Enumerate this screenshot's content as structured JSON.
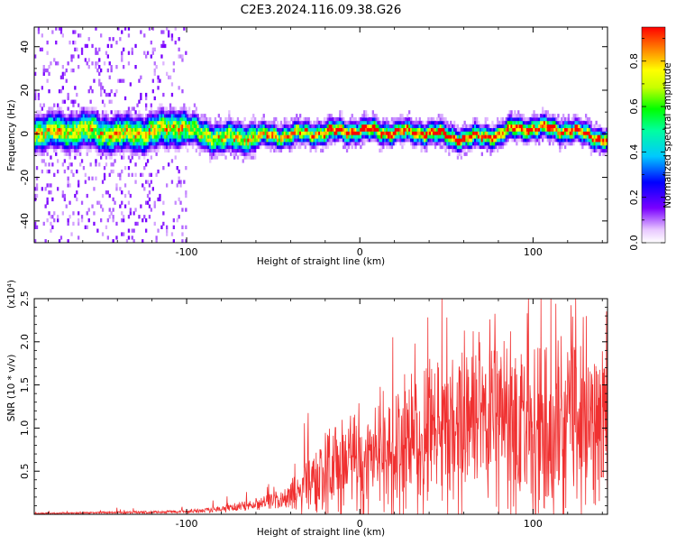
{
  "title": "C2E3.2024.116.09.38.G26",
  "colors": {
    "snr_line": "#f03030",
    "background": "#ffffff",
    "axis": "#000000"
  },
  "chart_data": [
    {
      "type": "heatmap",
      "xlabel": "Height of straight line (km)",
      "ylabel": "Frequency (Hz)",
      "xlim": [
        -188,
        143
      ],
      "ylim": [
        -50,
        49
      ],
      "x_ticks": [
        -100,
        0,
        100
      ],
      "y_ticks": [
        -40,
        -20,
        0,
        20,
        40
      ],
      "colorbar": {
        "label": "Normalized spectral amplitude",
        "range": [
          0.0,
          0.95
        ],
        "ticks": [
          0.0,
          0.2,
          0.4,
          0.6,
          0.8
        ],
        "tick_labels": [
          "0.0",
          "0.2",
          "0.4",
          "0.6",
          "0.8"
        ],
        "colormap": "rainbow (white/purple low → red high)"
      },
      "ridge": {
        "description": "central frequency of the signal vs height",
        "x": [
          -180,
          -160,
          -140,
          -120,
          -105,
          -95,
          -80,
          -60,
          -40,
          -20,
          0,
          20,
          40,
          60,
          80,
          90,
          100,
          120,
          140
        ],
        "center_hz": [
          0,
          1,
          -1,
          0,
          3,
          0,
          -3,
          -2,
          -1,
          0,
          1,
          0,
          0,
          -3,
          -1,
          2,
          2,
          1,
          -3
        ]
      }
    },
    {
      "type": "line",
      "xlabel": "Height of straight line (km)",
      "ylabel": "SNR (10 * v/v)",
      "y_multiplier": "(x10⁴)",
      "xlim": [
        -188,
        143
      ],
      "ylim": [
        0,
        2.5
      ],
      "x_ticks": [
        -100,
        0,
        100
      ],
      "y_ticks": [
        0.5,
        1.0,
        1.5,
        2.0,
        2.5
      ],
      "y_tick_labels": [
        "0.5",
        "1.0",
        "1.5",
        "2.0",
        "2.5"
      ],
      "series": [
        {
          "values_note": "noisy SNR trace, values in units of 10^4",
          "envelope": {
            "x": [
              -188,
              -140,
              -100,
              -80,
              -60,
              -40,
              -30,
              -20,
              0,
              20,
              40,
              60,
              80,
              100,
              120,
              143
            ],
            "y_mean": [
              0.01,
              0.02,
              0.03,
              0.06,
              0.12,
              0.2,
              0.35,
              0.45,
              0.55,
              0.75,
              0.9,
              0.95,
              1.0,
              1.0,
              1.0,
              1.0
            ],
            "y_max": [
              0.03,
              0.08,
              0.1,
              0.2,
              0.3,
              0.45,
              1.3,
              1.0,
              1.2,
              1.6,
              2.0,
              2.3,
              2.0,
              2.4,
              2.5,
              2.2
            ]
          }
        }
      ]
    }
  ]
}
